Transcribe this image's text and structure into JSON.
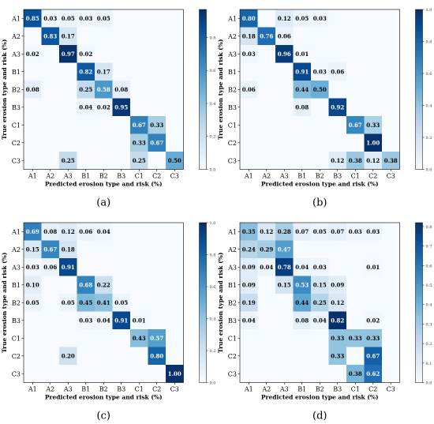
{
  "colorscale": {
    "low": "#f7fbff",
    "high": "#08306b",
    "label_dark": "#ffffff",
    "label_light": "#000000"
  },
  "chart_data": [
    {
      "type": "heatmap",
      "caption": "(a)",
      "xlabel": "Predicted erosion type and risk (%)",
      "ylabel": "True erosion type and risk (%)",
      "x_categories": [
        "A1",
        "A2",
        "A3",
        "B1",
        "B2",
        "B3",
        "C1",
        "C2",
        "C3"
      ],
      "y_categories": [
        "A1",
        "A2",
        "A3",
        "B1",
        "B2",
        "B3",
        "C1",
        "C2",
        "C3"
      ],
      "zlim": [
        0,
        0.97
      ],
      "colorbar_ticks": [
        "0.0",
        "0.2",
        "0.4",
        "0.6",
        "0.8"
      ],
      "cells": [
        {
          "row": 0,
          "col": 0,
          "value": 0.85,
          "label": "0.85"
        },
        {
          "row": 0,
          "col": 1,
          "value": 0.03,
          "label": "0.03"
        },
        {
          "row": 0,
          "col": 2,
          "value": 0.05,
          "label": "0.05"
        },
        {
          "row": 0,
          "col": 3,
          "value": 0.03,
          "label": "0.03"
        },
        {
          "row": 0,
          "col": 4,
          "value": 0.05,
          "label": "0.05"
        },
        {
          "row": 1,
          "col": 1,
          "value": 0.83,
          "label": "0.83"
        },
        {
          "row": 1,
          "col": 2,
          "value": 0.17,
          "label": "0.17"
        },
        {
          "row": 2,
          "col": 0,
          "value": 0.02,
          "label": "0.02"
        },
        {
          "row": 2,
          "col": 2,
          "value": 0.97,
          "label": "0.97"
        },
        {
          "row": 2,
          "col": 3,
          "value": 0.02,
          "label": "0.02"
        },
        {
          "row": 3,
          "col": 3,
          "value": 0.82,
          "label": "0.82"
        },
        {
          "row": 3,
          "col": 4,
          "value": 0.17,
          "label": "0.17"
        },
        {
          "row": 4,
          "col": 0,
          "value": 0.08,
          "label": "0.08"
        },
        {
          "row": 4,
          "col": 3,
          "value": 0.25,
          "label": "0.25"
        },
        {
          "row": 4,
          "col": 4,
          "value": 0.58,
          "label": "0.58"
        },
        {
          "row": 4,
          "col": 5,
          "value": 0.08,
          "label": "0.08"
        },
        {
          "row": 5,
          "col": 3,
          "value": 0.04,
          "label": "0.04"
        },
        {
          "row": 5,
          "col": 4,
          "value": 0.02,
          "label": "0.02"
        },
        {
          "row": 5,
          "col": 5,
          "value": 0.95,
          "label": "0.95"
        },
        {
          "row": 6,
          "col": 6,
          "value": 0.67,
          "label": "0.67"
        },
        {
          "row": 6,
          "col": 7,
          "value": 0.33,
          "label": "0.33"
        },
        {
          "row": 7,
          "col": 6,
          "value": 0.33,
          "label": "0.33"
        },
        {
          "row": 7,
          "col": 7,
          "value": 0.67,
          "label": "0.67"
        },
        {
          "row": 8,
          "col": 2,
          "value": 0.25,
          "label": "0.25"
        },
        {
          "row": 8,
          "col": 6,
          "value": 0.25,
          "label": "0.25"
        },
        {
          "row": 8,
          "col": 8,
          "value": 0.5,
          "label": "0.50"
        }
      ]
    },
    {
      "type": "heatmap",
      "caption": "(b)",
      "xlabel": "Predicted erosion type and risk (%)",
      "ylabel": "True erosion type and risk (%)",
      "x_categories": [
        "A1",
        "A2",
        "A3",
        "B1",
        "B2",
        "B3",
        "C1",
        "C2",
        "C3"
      ],
      "y_categories": [
        "A1",
        "A2",
        "A3",
        "B1",
        "B2",
        "B3",
        "C1",
        "C2",
        "C3"
      ],
      "zlim": [
        0,
        1.0
      ],
      "colorbar_ticks": [
        "0.0",
        "0.2",
        "0.4",
        "0.6",
        "0.8",
        "1.0"
      ],
      "cells": [
        {
          "row": 0,
          "col": 0,
          "value": 0.8,
          "label": "0.80"
        },
        {
          "row": 0,
          "col": 2,
          "value": 0.12,
          "label": "0.12"
        },
        {
          "row": 0,
          "col": 3,
          "value": 0.05,
          "label": "0.05"
        },
        {
          "row": 0,
          "col": 4,
          "value": 0.03,
          "label": "0.03"
        },
        {
          "row": 1,
          "col": 0,
          "value": 0.18,
          "label": "0.18"
        },
        {
          "row": 1,
          "col": 1,
          "value": 0.76,
          "label": "0.76"
        },
        {
          "row": 1,
          "col": 2,
          "value": 0.06,
          "label": "0.06"
        },
        {
          "row": 2,
          "col": 0,
          "value": 0.03,
          "label": "0.03"
        },
        {
          "row": 2,
          "col": 2,
          "value": 0.96,
          "label": "0.96"
        },
        {
          "row": 2,
          "col": 3,
          "value": 0.01,
          "label": "0.01"
        },
        {
          "row": 3,
          "col": 3,
          "value": 0.91,
          "label": "0.91"
        },
        {
          "row": 3,
          "col": 4,
          "value": 0.03,
          "label": "0.03"
        },
        {
          "row": 3,
          "col": 5,
          "value": 0.06,
          "label": "0.06"
        },
        {
          "row": 4,
          "col": 0,
          "value": 0.06,
          "label": "0.06"
        },
        {
          "row": 4,
          "col": 3,
          "value": 0.44,
          "label": "0.44"
        },
        {
          "row": 4,
          "col": 4,
          "value": 0.5,
          "label": "0.50"
        },
        {
          "row": 5,
          "col": 3,
          "value": 0.08,
          "label": "0.08"
        },
        {
          "row": 5,
          "col": 5,
          "value": 0.92,
          "label": "0.92"
        },
        {
          "row": 6,
          "col": 6,
          "value": 0.67,
          "label": "0.67"
        },
        {
          "row": 6,
          "col": 7,
          "value": 0.33,
          "label": "0.33"
        },
        {
          "row": 7,
          "col": 7,
          "value": 1.0,
          "label": "1.00"
        },
        {
          "row": 8,
          "col": 5,
          "value": 0.12,
          "label": "0.12"
        },
        {
          "row": 8,
          "col": 6,
          "value": 0.38,
          "label": "0.38"
        },
        {
          "row": 8,
          "col": 7,
          "value": 0.12,
          "label": "0.12"
        },
        {
          "row": 8,
          "col": 8,
          "value": 0.38,
          "label": "0.38"
        }
      ]
    },
    {
      "type": "heatmap",
      "caption": "(c)",
      "xlabel": "Predicted erosion type and risk (%)",
      "ylabel": "True erosion type and risk (%)",
      "x_categories": [
        "A1",
        "A2",
        "A3",
        "B1",
        "B2",
        "B3",
        "C1",
        "C2",
        "C3"
      ],
      "y_categories": [
        "A1",
        "A2",
        "A3",
        "B1",
        "B2",
        "B3",
        "C1",
        "C2",
        "C3"
      ],
      "zlim": [
        0,
        1.0
      ],
      "colorbar_ticks": [
        "0.0",
        "0.2",
        "0.4",
        "0.6",
        "0.8",
        "1.0"
      ],
      "cells": [
        {
          "row": 0,
          "col": 0,
          "value": 0.69,
          "label": "0.69"
        },
        {
          "row": 0,
          "col": 1,
          "value": 0.08,
          "label": "0.08"
        },
        {
          "row": 0,
          "col": 2,
          "value": 0.12,
          "label": "0.12"
        },
        {
          "row": 0,
          "col": 3,
          "value": 0.06,
          "label": "0.06"
        },
        {
          "row": 0,
          "col": 4,
          "value": 0.04,
          "label": "0.04"
        },
        {
          "row": 1,
          "col": 0,
          "value": 0.15,
          "label": "0.15"
        },
        {
          "row": 1,
          "col": 1,
          "value": 0.67,
          "label": "0.67"
        },
        {
          "row": 1,
          "col": 2,
          "value": 0.18,
          "label": "0.18"
        },
        {
          "row": 2,
          "col": 0,
          "value": 0.03,
          "label": "0.03"
        },
        {
          "row": 2,
          "col": 1,
          "value": 0.06,
          "label": "0.06"
        },
        {
          "row": 2,
          "col": 2,
          "value": 0.91,
          "label": "0.91"
        },
        {
          "row": 3,
          "col": 0,
          "value": 0.1,
          "label": "0.10"
        },
        {
          "row": 3,
          "col": 3,
          "value": 0.68,
          "label": "0.68"
        },
        {
          "row": 3,
          "col": 4,
          "value": 0.22,
          "label": "0.22"
        },
        {
          "row": 4,
          "col": 0,
          "value": 0.05,
          "label": "0.05"
        },
        {
          "row": 4,
          "col": 2,
          "value": 0.05,
          "label": "0.05"
        },
        {
          "row": 4,
          "col": 3,
          "value": 0.45,
          "label": "0.45"
        },
        {
          "row": 4,
          "col": 4,
          "value": 0.41,
          "label": "0.41"
        },
        {
          "row": 4,
          "col": 5,
          "value": 0.05,
          "label": "0.05"
        },
        {
          "row": 5,
          "col": 3,
          "value": 0.03,
          "label": "0.03"
        },
        {
          "row": 5,
          "col": 4,
          "value": 0.04,
          "label": "0.04"
        },
        {
          "row": 5,
          "col": 5,
          "value": 0.91,
          "label": "0.91"
        },
        {
          "row": 5,
          "col": 6,
          "value": 0.01,
          "label": "0.01"
        },
        {
          "row": 6,
          "col": 6,
          "value": 0.43,
          "label": "0.43"
        },
        {
          "row": 6,
          "col": 7,
          "value": 0.57,
          "label": "0.57"
        },
        {
          "row": 7,
          "col": 2,
          "value": 0.2,
          "label": "0.20"
        },
        {
          "row": 7,
          "col": 7,
          "value": 0.8,
          "label": "0.80"
        },
        {
          "row": 8,
          "col": 8,
          "value": 1.0,
          "label": "1.00"
        }
      ]
    },
    {
      "type": "heatmap",
      "caption": "(d)",
      "xlabel": "Predicted erosion type and risk (%)",
      "ylabel": "True erosion type and risk (%)",
      "x_categories": [
        "A1",
        "A2",
        "A3",
        "B1",
        "B2",
        "B3",
        "C1",
        "C2",
        "C3"
      ],
      "y_categories": [
        "A1",
        "A2",
        "A3",
        "B1",
        "B2",
        "B3",
        "C1",
        "C2",
        "C3"
      ],
      "zlim": [
        0,
        0.82
      ],
      "colorbar_ticks": [
        "0.0",
        "0.1",
        "0.2",
        "0.3",
        "0.4",
        "0.5",
        "0.6",
        "0.7",
        "0.8"
      ],
      "cells": [
        {
          "row": 0,
          "col": 0,
          "value": 0.35,
          "label": "0.35"
        },
        {
          "row": 0,
          "col": 1,
          "value": 0.12,
          "label": "0.12"
        },
        {
          "row": 0,
          "col": 2,
          "value": 0.28,
          "label": "0.28"
        },
        {
          "row": 0,
          "col": 3,
          "value": 0.07,
          "label": "0.07"
        },
        {
          "row": 0,
          "col": 4,
          "value": 0.05,
          "label": "0.05"
        },
        {
          "row": 0,
          "col": 5,
          "value": 0.07,
          "label": "0.07"
        },
        {
          "row": 0,
          "col": 6,
          "value": 0.03,
          "label": "0.03"
        },
        {
          "row": 0,
          "col": 7,
          "value": 0.03,
          "label": "0.03"
        },
        {
          "row": 1,
          "col": 0,
          "value": 0.24,
          "label": "0.24"
        },
        {
          "row": 1,
          "col": 1,
          "value": 0.29,
          "label": "0.29"
        },
        {
          "row": 1,
          "col": 2,
          "value": 0.47,
          "label": "0.47"
        },
        {
          "row": 2,
          "col": 0,
          "value": 0.09,
          "label": "0.09"
        },
        {
          "row": 2,
          "col": 1,
          "value": 0.04,
          "label": "0.04"
        },
        {
          "row": 2,
          "col": 2,
          "value": 0.78,
          "label": "0.78"
        },
        {
          "row": 2,
          "col": 3,
          "value": 0.04,
          "label": "0.04"
        },
        {
          "row": 2,
          "col": 4,
          "value": 0.03,
          "label": "0.03"
        },
        {
          "row": 2,
          "col": 7,
          "value": 0.01,
          "label": "0.01"
        },
        {
          "row": 3,
          "col": 0,
          "value": 0.09,
          "label": "0.09"
        },
        {
          "row": 3,
          "col": 2,
          "value": 0.15,
          "label": "0.15"
        },
        {
          "row": 3,
          "col": 3,
          "value": 0.53,
          "label": "0.53"
        },
        {
          "row": 3,
          "col": 4,
          "value": 0.15,
          "label": "0.15"
        },
        {
          "row": 3,
          "col": 5,
          "value": 0.09,
          "label": "0.09"
        },
        {
          "row": 4,
          "col": 0,
          "value": 0.19,
          "label": "0.19"
        },
        {
          "row": 4,
          "col": 3,
          "value": 0.44,
          "label": "0.44"
        },
        {
          "row": 4,
          "col": 4,
          "value": 0.25,
          "label": "0.25"
        },
        {
          "row": 4,
          "col": 5,
          "value": 0.12,
          "label": "0.12"
        },
        {
          "row": 5,
          "col": 0,
          "value": 0.04,
          "label": "0.04"
        },
        {
          "row": 5,
          "col": 3,
          "value": 0.08,
          "label": "0.08"
        },
        {
          "row": 5,
          "col": 4,
          "value": 0.04,
          "label": "0.04"
        },
        {
          "row": 5,
          "col": 5,
          "value": 0.82,
          "label": "0.82"
        },
        {
          "row": 5,
          "col": 7,
          "value": 0.02,
          "label": "0.02"
        },
        {
          "row": 6,
          "col": 5,
          "value": 0.33,
          "label": "0.33"
        },
        {
          "row": 6,
          "col": 6,
          "value": 0.33,
          "label": "0.33"
        },
        {
          "row": 6,
          "col": 7,
          "value": 0.33,
          "label": "0.33"
        },
        {
          "row": 7,
          "col": 5,
          "value": 0.33,
          "label": "0.33"
        },
        {
          "row": 7,
          "col": 7,
          "value": 0.67,
          "label": "0.67"
        },
        {
          "row": 8,
          "col": 6,
          "value": 0.38,
          "label": "0.38"
        },
        {
          "row": 8,
          "col": 7,
          "value": 0.62,
          "label": "0.62"
        }
      ]
    }
  ]
}
